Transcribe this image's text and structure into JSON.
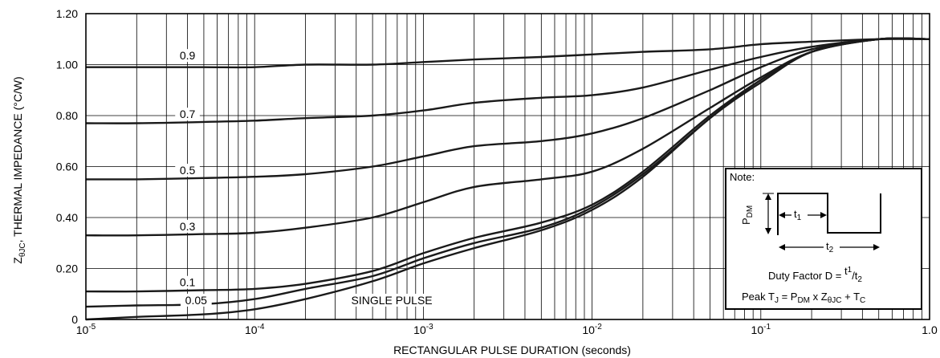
{
  "chart_data": {
    "type": "line",
    "xscale": "log",
    "xlim": [
      1e-05,
      1.0
    ],
    "ylim": [
      0,
      1.2
    ],
    "xlabel": "RECTANGULAR PULSE DURATION (seconds)",
    "ylabel_main": "Z",
    "ylabel_sub": "θJC",
    "ylabel_rest": ", THERMAL IMPEDANCE (°C/W)",
    "y_ticks": [
      "0",
      "0.20",
      "0.40",
      "0.60",
      "0.80",
      "1.00",
      "1.20"
    ],
    "x_ticks": [
      {
        "base": "10",
        "exp": "-5"
      },
      {
        "base": "10",
        "exp": "-4"
      },
      {
        "base": "10",
        "exp": "-3"
      },
      {
        "base": "10",
        "exp": "-2"
      },
      {
        "base": "10",
        "exp": "-1"
      },
      {
        "base": "1.0",
        "exp": ""
      }
    ],
    "x": [
      1e-05,
      2e-05,
      5e-05,
      0.0001,
      0.0002,
      0.0005,
      0.001,
      0.002,
      0.005,
      0.01,
      0.02,
      0.05,
      0.1,
      0.2,
      0.5,
      1.0
    ],
    "series": [
      {
        "label": "0.9",
        "values": [
          0.99,
          0.99,
          0.99,
          0.99,
          1.0,
          1.0,
          1.01,
          1.02,
          1.03,
          1.04,
          1.05,
          1.06,
          1.08,
          1.09,
          1.1,
          1.1
        ]
      },
      {
        "label": "0.7",
        "values": [
          0.77,
          0.77,
          0.775,
          0.78,
          0.79,
          0.8,
          0.82,
          0.85,
          0.87,
          0.88,
          0.91,
          0.98,
          1.03,
          1.07,
          1.1,
          1.1
        ]
      },
      {
        "label": "0.5",
        "values": [
          0.55,
          0.55,
          0.555,
          0.56,
          0.57,
          0.6,
          0.64,
          0.68,
          0.7,
          0.73,
          0.79,
          0.9,
          0.99,
          1.06,
          1.1,
          1.1
        ]
      },
      {
        "label": "0.3",
        "values": [
          0.33,
          0.33,
          0.335,
          0.34,
          0.36,
          0.4,
          0.46,
          0.52,
          0.55,
          0.58,
          0.67,
          0.83,
          0.95,
          1.05,
          1.1,
          1.1
        ]
      },
      {
        "label": "0.1",
        "values": [
          0.11,
          0.11,
          0.115,
          0.12,
          0.14,
          0.19,
          0.26,
          0.32,
          0.38,
          0.45,
          0.58,
          0.8,
          0.94,
          1.05,
          1.1,
          1.1
        ]
      },
      {
        "label": "0.05",
        "values": [
          0.05,
          0.055,
          0.06,
          0.08,
          0.12,
          0.17,
          0.24,
          0.3,
          0.36,
          0.44,
          0.57,
          0.79,
          0.94,
          1.05,
          1.1,
          1.1
        ]
      },
      {
        "label": "SINGLE PULSE",
        "values": [
          0.0,
          0.01,
          0.02,
          0.04,
          0.08,
          0.15,
          0.22,
          0.28,
          0.35,
          0.43,
          0.56,
          0.79,
          0.93,
          1.05,
          1.1,
          1.1
        ]
      }
    ],
    "grid": true
  },
  "note": {
    "title": "Note:",
    "pdm": "P",
    "pdm_sub": "DM",
    "t1": "t",
    "t1_sub": "1",
    "t2": "t",
    "t2_sub": "2",
    "duty_prefix": "Duty Factor  D = ",
    "duty_num": "t",
    "duty_num_sub": "1",
    "duty_den": "/t",
    "duty_den_sub": "2",
    "peak_a": "Peak T",
    "peak_a_sub": "J",
    "peak_b": " = P",
    "peak_b_sub": "DM",
    "peak_c": " x Z",
    "peak_c_sub": "θJC",
    "peak_d": " + T",
    "peak_d_sub": "C"
  }
}
